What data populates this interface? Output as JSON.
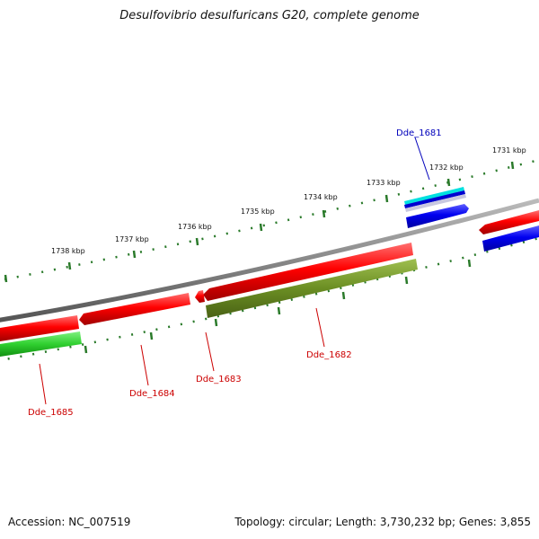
{
  "title": "Desulfovibrio desulfuricans G20, complete genome",
  "footer": {
    "accession_text": "Accession: NC_007519",
    "summary_text": "Topology: circular; Length: 3,730,232 bp; Genes: 3,855"
  },
  "scale_labels": [
    "1731 kbp",
    "1732 kbp",
    "1733 kbp",
    "1734 kbp",
    "1735 kbp",
    "1736 kbp",
    "1737 kbp",
    "1738 kbp"
  ],
  "genes": [
    {
      "id": "dde-1681",
      "label": "Dde_1681",
      "color": "#0000bb"
    },
    {
      "id": "dde-1682",
      "label": "Dde_1682",
      "color": "#cc0000"
    },
    {
      "id": "dde-1683",
      "label": "Dde_1683",
      "color": "#cc0000"
    },
    {
      "id": "dde-1684",
      "label": "Dde_1684",
      "color": "#cc0000"
    },
    {
      "id": "dde-1685",
      "label": "Dde_1685",
      "color": "#cc0000"
    }
  ],
  "colors": {
    "backbone": "#888888",
    "scale_ticks": "#2a7a2a",
    "forward_cds": "#e00000",
    "reverse_cds": "#0000e0",
    "rna_feature": "#20c020",
    "olive_feature": "#6b8e23",
    "cyan_feature": "#00e0e0"
  }
}
